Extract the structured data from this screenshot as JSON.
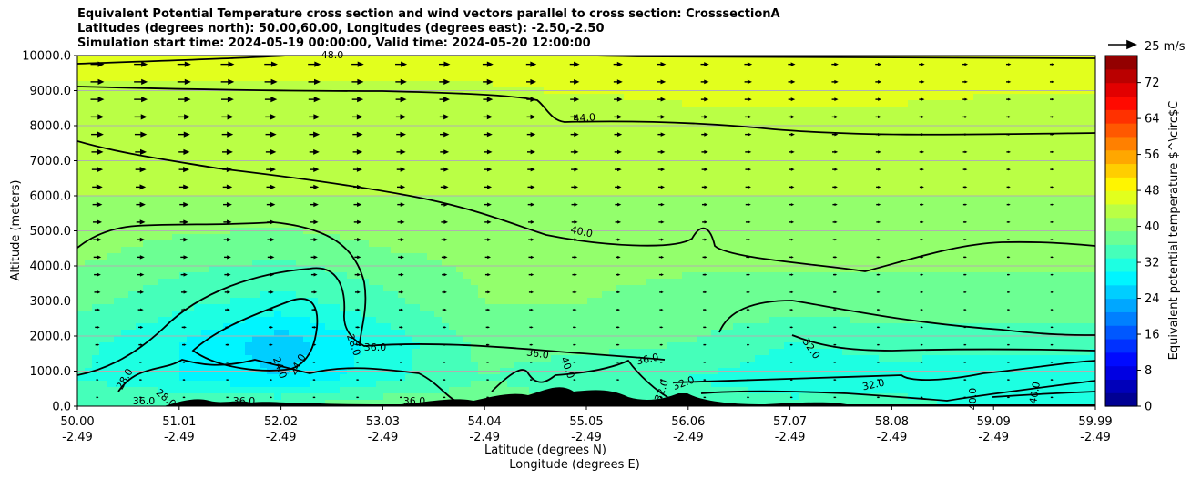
{
  "chart_data": {
    "type": "heatmap",
    "title_lines": [
      "Equivalent Potential Temperature cross section and wind vectors parallel to cross section: CrosssectionA",
      "Latitudes (degrees north): 50.00,60.00, Longitudes (degrees east): -2.50,-2.50",
      "Simulation start time: 2024-05-19 00:00:00, Valid time: 2024-05-20 12:00:00"
    ],
    "ylabel": "Altitude (meters)",
    "xlabel_lat": "Latitude (degrees N)",
    "xlabel_lon": "Longitude (degrees E)",
    "ylim": [
      0,
      10000
    ],
    "yticks": [
      "0.0",
      "1000.0",
      "2000.0",
      "3000.0",
      "4000.0",
      "5000.0",
      "6000.0",
      "7000.0",
      "8000.0",
      "9000.0",
      "10000.0"
    ],
    "xticks_lat": [
      "50.00",
      "51.01",
      "52.02",
      "53.03",
      "54.04",
      "55.05",
      "56.06",
      "57.07",
      "58.08",
      "59.09",
      "59.99"
    ],
    "xticks_lon": [
      "-2.49",
      "-2.49",
      "-2.49",
      "-2.49",
      "-2.49",
      "-2.49",
      "-2.49",
      "-2.49",
      "-2.49",
      "-2.49",
      "-2.49"
    ],
    "grid": "horizontal",
    "colorbar": {
      "label": "Equivalent potential temperature $^\\circ$C",
      "ticks": [
        "0",
        "8",
        "16",
        "24",
        "32",
        "40",
        "48",
        "56",
        "64",
        "72"
      ],
      "range": [
        0,
        78
      ],
      "colormap": "jet"
    },
    "wind_key": {
      "label": "25 m/s"
    },
    "contour_labels": [
      "48.0",
      "44.0",
      "40.0",
      "36.0",
      "36.0",
      "36.0",
      "36.0",
      "36.0",
      "36.0",
      "32.0",
      "32.0",
      "32.0",
      "32.0",
      "28.0",
      "28.0",
      "28.0",
      "24.0",
      "24.0",
      "40.0",
      "40.0",
      "40.0"
    ],
    "theta_field": [
      {
        "alt": 9800,
        "values": [
          46,
          46,
          46,
          46,
          46,
          47,
          47,
          47,
          47,
          46,
          46
        ]
      },
      {
        "alt": 8000,
        "values": [
          43,
          43,
          43,
          43,
          43,
          43,
          44,
          44,
          44,
          44,
          44
        ]
      },
      {
        "alt": 6000,
        "values": [
          42,
          42,
          42,
          42,
          42,
          42,
          42,
          42,
          42,
          42,
          42
        ]
      },
      {
        "alt": 4500,
        "values": [
          40,
          38,
          37,
          39,
          40,
          40,
          40,
          40,
          40,
          40,
          40
        ]
      },
      {
        "alt": 3000,
        "values": [
          37,
          34,
          32,
          35,
          39,
          39,
          38,
          38,
          38,
          38,
          38
        ]
      },
      {
        "alt": 1800,
        "values": [
          34,
          30,
          25,
          31,
          37,
          37,
          36,
          33,
          34,
          34,
          34
        ]
      },
      {
        "alt": 800,
        "values": [
          33,
          30,
          27,
          32,
          36,
          34,
          33,
          31,
          32,
          31,
          30
        ]
      },
      {
        "alt": 0,
        "values": [
          36,
          36,
          36,
          38,
          38,
          36,
          35,
          34,
          34,
          32,
          32
        ]
      }
    ]
  }
}
